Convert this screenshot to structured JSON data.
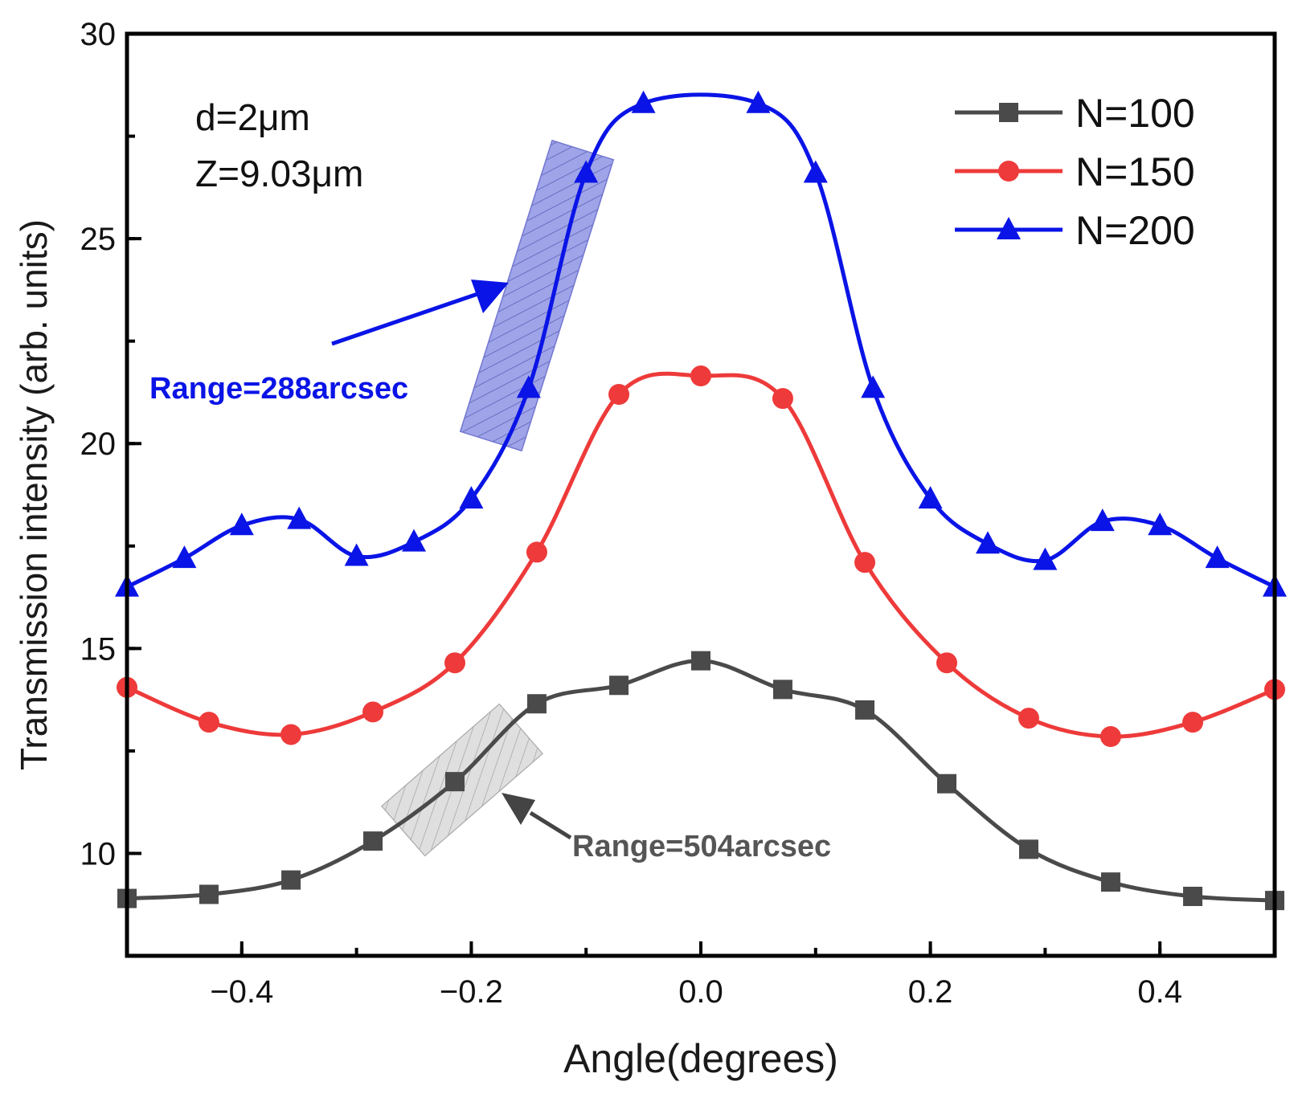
{
  "chart_data": {
    "type": "line",
    "xlabel": "Angle(degrees)",
    "ylabel": "Transmission intensity (arb. units)",
    "xlim": [
      -0.5,
      0.5
    ],
    "ylim": [
      7.5,
      30
    ],
    "x_ticks": [
      -0.4,
      -0.2,
      0.0,
      0.2,
      0.4
    ],
    "x_tick_labels": [
      "−0.4",
      "−0.2",
      "0.0",
      "0.2",
      "0.4"
    ],
    "y_ticks": [
      10,
      15,
      20,
      25,
      30
    ],
    "y_tick_labels": [
      "10",
      "15",
      "20",
      "25",
      "30"
    ],
    "legend_position": "top-right",
    "annotations": {
      "params": [
        "d=2μm",
        "Z=9.03μm"
      ],
      "range_n200": "Range=288arcsec",
      "range_n100": "Range=504arcsec"
    },
    "series": [
      {
        "name": "N=100",
        "color": "#4a4a4a",
        "marker": "square",
        "x": [
          -0.5,
          -0.4286,
          -0.3571,
          -0.2857,
          -0.2143,
          -0.1429,
          -0.0714,
          0.0,
          0.0714,
          0.1429,
          0.2143,
          0.2857,
          0.3571,
          0.4286,
          0.5
        ],
        "y": [
          8.9,
          9.0,
          9.35,
          10.3,
          11.75,
          13.65,
          14.1,
          14.7,
          14.0,
          13.5,
          11.7,
          10.1,
          9.3,
          8.95,
          8.85
        ]
      },
      {
        "name": "N=150",
        "color": "#ee3a3a",
        "marker": "circle",
        "x": [
          -0.5,
          -0.4286,
          -0.3571,
          -0.2857,
          -0.2143,
          -0.1429,
          -0.0714,
          0.0,
          0.0714,
          0.1429,
          0.2143,
          0.2857,
          0.3571,
          0.4286,
          0.5
        ],
        "y": [
          14.05,
          13.2,
          12.9,
          13.45,
          14.65,
          17.35,
          21.2,
          21.65,
          21.1,
          17.1,
          14.65,
          13.3,
          12.85,
          13.2,
          14.0
        ]
      },
      {
        "name": "N=200",
        "color": "#0a14e6",
        "marker": "triangle",
        "x": [
          -0.5,
          -0.45,
          -0.4,
          -0.35,
          -0.3,
          -0.25,
          -0.2,
          -0.15,
          -0.1,
          -0.05,
          0.05,
          0.1,
          0.15,
          0.2,
          0.25,
          0.3,
          0.35,
          0.4,
          0.45,
          0.5
        ],
        "y": [
          16.5,
          17.2,
          18.0,
          18.15,
          17.25,
          17.6,
          18.65,
          21.35,
          26.6,
          28.3,
          28.3,
          26.6,
          21.35,
          18.65,
          17.55,
          17.15,
          18.1,
          18.0,
          17.2,
          16.5
        ]
      }
    ]
  }
}
